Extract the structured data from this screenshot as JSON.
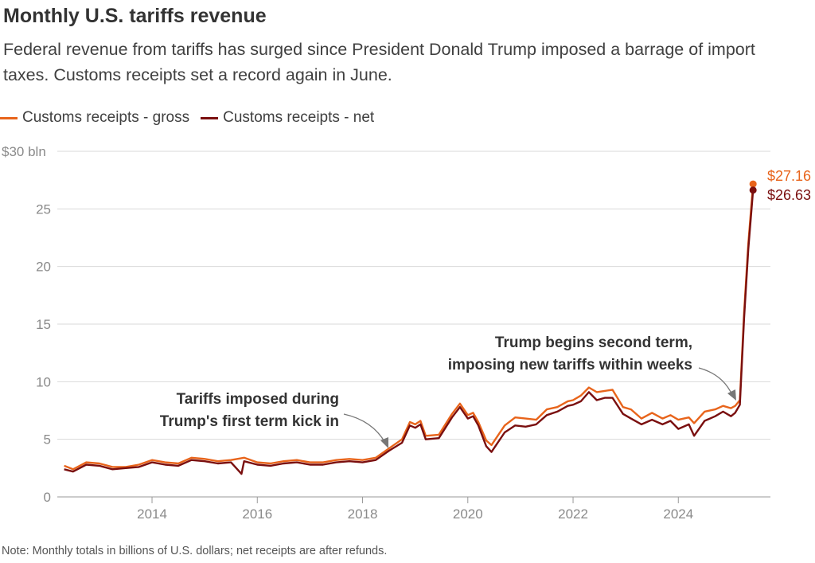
{
  "header": {
    "title": "Monthly U.S. tariffs revenue",
    "subtitle": "Federal revenue from tariffs has surged since President Donald Trump imposed a barrage of import taxes. Customs receipts set a record again in June."
  },
  "footer": {
    "note": "Note: Monthly totals in billions of U.S. dollars; net receipts are after refunds."
  },
  "colors": {
    "gross": "#e8641b",
    "net": "#7a0f0f",
    "grid": "#d9d9d9",
    "axis": "#999999"
  },
  "chart_data": {
    "type": "line",
    "title": "Monthly U.S. tariffs revenue",
    "ylabel": "",
    "xlabel": "",
    "ylim": [
      0,
      30
    ],
    "xlim": [
      2012.2,
      2025.75
    ],
    "y_ticks": [
      0,
      5,
      10,
      15,
      20,
      25,
      30
    ],
    "y_tick_labels": [
      "0",
      "5",
      "10",
      "15",
      "20",
      "25",
      "$30 bln"
    ],
    "x_ticks": [
      2014,
      2016,
      2018,
      2020,
      2022,
      2024
    ],
    "x_tick_labels": [
      "2014",
      "2016",
      "2018",
      "2020",
      "2022",
      "2024"
    ],
    "grid": true,
    "legend_position": "top-left",
    "series": [
      {
        "name": "Customs receipts - gross",
        "color": "#e8641b",
        "points": [
          [
            2012.33,
            2.7
          ],
          [
            2012.5,
            2.4
          ],
          [
            2012.75,
            3.0
          ],
          [
            2013.0,
            2.9
          ],
          [
            2013.25,
            2.6
          ],
          [
            2013.5,
            2.6
          ],
          [
            2013.75,
            2.8
          ],
          [
            2014.0,
            3.2
          ],
          [
            2014.25,
            3.0
          ],
          [
            2014.5,
            2.9
          ],
          [
            2014.75,
            3.4
          ],
          [
            2015.0,
            3.3
          ],
          [
            2015.25,
            3.1
          ],
          [
            2015.5,
            3.2
          ],
          [
            2015.75,
            3.4
          ],
          [
            2016.0,
            3.0
          ],
          [
            2016.25,
            2.9
          ],
          [
            2016.5,
            3.1
          ],
          [
            2016.75,
            3.2
          ],
          [
            2017.0,
            3.0
          ],
          [
            2017.25,
            3.0
          ],
          [
            2017.5,
            3.2
          ],
          [
            2017.75,
            3.3
          ],
          [
            2018.0,
            3.2
          ],
          [
            2018.25,
            3.4
          ],
          [
            2018.5,
            4.2
          ],
          [
            2018.75,
            5.0
          ],
          [
            2018.9,
            6.5
          ],
          [
            2019.0,
            6.3
          ],
          [
            2019.1,
            6.6
          ],
          [
            2019.2,
            5.3
          ],
          [
            2019.45,
            5.4
          ],
          [
            2019.7,
            7.2
          ],
          [
            2019.85,
            8.1
          ],
          [
            2020.0,
            7.1
          ],
          [
            2020.1,
            7.3
          ],
          [
            2020.2,
            6.5
          ],
          [
            2020.35,
            4.9
          ],
          [
            2020.45,
            4.5
          ],
          [
            2020.7,
            6.2
          ],
          [
            2020.9,
            6.9
          ],
          [
            2021.1,
            6.8
          ],
          [
            2021.3,
            6.7
          ],
          [
            2021.5,
            7.6
          ],
          [
            2021.7,
            7.8
          ],
          [
            2021.9,
            8.3
          ],
          [
            2022.0,
            8.4
          ],
          [
            2022.15,
            8.8
          ],
          [
            2022.3,
            9.5
          ],
          [
            2022.45,
            9.1
          ],
          [
            2022.6,
            9.2
          ],
          [
            2022.75,
            9.3
          ],
          [
            2022.95,
            7.8
          ],
          [
            2023.1,
            7.6
          ],
          [
            2023.3,
            6.8
          ],
          [
            2023.5,
            7.3
          ],
          [
            2023.7,
            6.8
          ],
          [
            2023.85,
            7.1
          ],
          [
            2024.0,
            6.7
          ],
          [
            2024.2,
            6.9
          ],
          [
            2024.3,
            6.4
          ],
          [
            2024.5,
            7.4
          ],
          [
            2024.7,
            7.6
          ],
          [
            2024.85,
            7.9
          ],
          [
            2025.0,
            7.7
          ],
          [
            2025.08,
            7.9
          ],
          [
            2025.17,
            8.4
          ],
          [
            2025.25,
            16.0
          ],
          [
            2025.33,
            22.0
          ],
          [
            2025.42,
            27.16
          ]
        ]
      },
      {
        "name": "Customs receipts - net",
        "color": "#7a0f0f",
        "points": [
          [
            2012.33,
            2.4
          ],
          [
            2012.5,
            2.2
          ],
          [
            2012.75,
            2.8
          ],
          [
            2013.0,
            2.7
          ],
          [
            2013.25,
            2.4
          ],
          [
            2013.5,
            2.5
          ],
          [
            2013.75,
            2.6
          ],
          [
            2014.0,
            3.0
          ],
          [
            2014.25,
            2.8
          ],
          [
            2014.5,
            2.7
          ],
          [
            2014.75,
            3.2
          ],
          [
            2015.0,
            3.1
          ],
          [
            2015.25,
            2.9
          ],
          [
            2015.5,
            3.0
          ],
          [
            2015.7,
            2.0
          ],
          [
            2015.75,
            3.1
          ],
          [
            2016.0,
            2.8
          ],
          [
            2016.25,
            2.7
          ],
          [
            2016.5,
            2.9
          ],
          [
            2016.75,
            3.0
          ],
          [
            2017.0,
            2.8
          ],
          [
            2017.25,
            2.8
          ],
          [
            2017.5,
            3.0
          ],
          [
            2017.75,
            3.1
          ],
          [
            2018.0,
            3.0
          ],
          [
            2018.25,
            3.2
          ],
          [
            2018.5,
            4.0
          ],
          [
            2018.75,
            4.7
          ],
          [
            2018.9,
            6.2
          ],
          [
            2019.0,
            6.0
          ],
          [
            2019.1,
            6.3
          ],
          [
            2019.2,
            5.0
          ],
          [
            2019.45,
            5.1
          ],
          [
            2019.7,
            6.9
          ],
          [
            2019.85,
            7.8
          ],
          [
            2020.0,
            6.8
          ],
          [
            2020.1,
            7.0
          ],
          [
            2020.2,
            6.2
          ],
          [
            2020.35,
            4.4
          ],
          [
            2020.45,
            3.9
          ],
          [
            2020.7,
            5.6
          ],
          [
            2020.9,
            6.2
          ],
          [
            2021.1,
            6.1
          ],
          [
            2021.3,
            6.3
          ],
          [
            2021.5,
            7.1
          ],
          [
            2021.7,
            7.4
          ],
          [
            2021.9,
            7.9
          ],
          [
            2022.0,
            8.0
          ],
          [
            2022.15,
            8.3
          ],
          [
            2022.3,
            9.1
          ],
          [
            2022.45,
            8.4
          ],
          [
            2022.6,
            8.6
          ],
          [
            2022.75,
            8.6
          ],
          [
            2022.95,
            7.2
          ],
          [
            2023.1,
            6.8
          ],
          [
            2023.3,
            6.3
          ],
          [
            2023.5,
            6.7
          ],
          [
            2023.7,
            6.3
          ],
          [
            2023.85,
            6.6
          ],
          [
            2024.0,
            5.9
          ],
          [
            2024.2,
            6.3
          ],
          [
            2024.3,
            5.3
          ],
          [
            2024.5,
            6.6
          ],
          [
            2024.7,
            7.0
          ],
          [
            2024.85,
            7.4
          ],
          [
            2025.0,
            7.0
          ],
          [
            2025.08,
            7.3
          ],
          [
            2025.17,
            8.0
          ],
          [
            2025.25,
            15.5
          ],
          [
            2025.33,
            21.5
          ],
          [
            2025.42,
            26.63
          ]
        ]
      }
    ],
    "end_labels": [
      {
        "series": "Customs receipts - gross",
        "text": "$27.16",
        "value": 27.16
      },
      {
        "series": "Customs receipts - net",
        "text": "$26.63",
        "value": 26.63
      }
    ],
    "annotations": [
      {
        "lines": [
          "Tariffs imposed during",
          "Trump's first term kick in"
        ],
        "target": [
          2018.45,
          4.3
        ]
      },
      {
        "lines": [
          "Trump begins second term,",
          "imposing new tariffs within weeks"
        ],
        "target": [
          2025.05,
          8.2
        ]
      }
    ]
  }
}
